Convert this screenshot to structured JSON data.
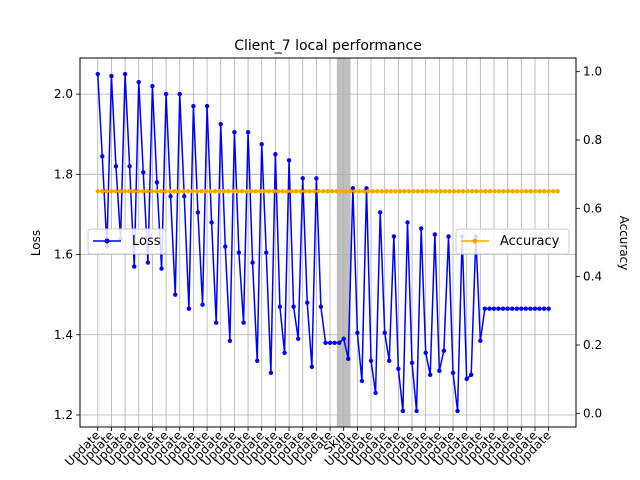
{
  "chart_data": {
    "type": "line",
    "title": "Client_7 local performance",
    "xlabel": "",
    "ylabel_left": "Loss",
    "ylabel_right": "Accuracy",
    "ylim_left": [
      1.17,
      2.09
    ],
    "ylim_right": [
      -0.04,
      1.04
    ],
    "yticks_left": [
      "1.2",
      "1.4",
      "1.6",
      "1.8",
      "2.0"
    ],
    "yticks_right": [
      "0.0",
      "0.2",
      "0.4",
      "0.6",
      "0.8",
      "1.0"
    ],
    "x_tick_labels": [
      "Update",
      "Update",
      "Update",
      "Update",
      "Update",
      "Update",
      "Update",
      "Update",
      "Update",
      "Update",
      "Update",
      "Update",
      "Update",
      "Update",
      "Update",
      "Update",
      "Update",
      "Update",
      "Skip",
      "Update",
      "Update",
      "Update",
      "Update",
      "Update",
      "Update",
      "Update",
      "Update",
      "Update",
      "Update",
      "Update",
      "Update",
      "Update",
      "Update",
      "Update"
    ],
    "skip_span": [
      17.5,
      18.5
    ],
    "grid": true,
    "legends": [
      {
        "label": "Loss",
        "placement": "center-left"
      },
      {
        "label": "Accuracy",
        "placement": "center-right"
      }
    ],
    "series": [
      {
        "name": "Loss",
        "axis": "left",
        "color": "#0000ff",
        "x": [
          0,
          0.33,
          0.67,
          1,
          1.33,
          1.67,
          2,
          2.33,
          2.67,
          3,
          3.33,
          3.67,
          4,
          4.33,
          4.67,
          5,
          5.33,
          5.67,
          6,
          6.33,
          6.67,
          7,
          7.33,
          7.67,
          8,
          8.33,
          8.67,
          9,
          9.33,
          9.67,
          10,
          10.33,
          10.67,
          11,
          11.33,
          11.67,
          12,
          12.33,
          12.67,
          13,
          13.33,
          13.67,
          14,
          14.33,
          14.67,
          15,
          15.33,
          15.67,
          16,
          16.33,
          16.67,
          17,
          17.33,
          17.67,
          18,
          18.33,
          18.67,
          19,
          19.33,
          19.67,
          20,
          20.33,
          20.67,
          21,
          21.33,
          21.67,
          22,
          22.33,
          22.67,
          23,
          23.33,
          23.67,
          24,
          24.33,
          24.67,
          25,
          25.33,
          25.67,
          26,
          26.33,
          26.67,
          27,
          27.33,
          27.67,
          28,
          28.33,
          28.67,
          29,
          29.33,
          29.67,
          30,
          30.33,
          30.67,
          31,
          31.33,
          31.67,
          32,
          32.33,
          32.67,
          33
        ],
        "y": [
          2.05,
          1.845,
          1.62,
          2.045,
          1.82,
          1.64,
          2.05,
          1.82,
          1.57,
          2.03,
          1.805,
          1.58,
          2.02,
          1.78,
          1.565,
          2.0,
          1.745,
          1.5,
          2.0,
          1.745,
          1.465,
          1.97,
          1.705,
          1.475,
          1.97,
          1.68,
          1.43,
          1.925,
          1.62,
          1.385,
          1.905,
          1.605,
          1.43,
          1.905,
          1.58,
          1.335,
          1.875,
          1.605,
          1.305,
          1.85,
          1.47,
          1.355,
          1.835,
          1.47,
          1.39,
          1.79,
          1.48,
          1.32,
          1.79,
          1.47,
          1.38,
          1.38,
          1.38,
          1.38,
          1.39,
          1.34,
          1.765,
          1.405,
          1.285,
          1.765,
          1.335,
          1.255,
          1.705,
          1.405,
          1.335,
          1.645,
          1.315,
          1.21,
          1.68,
          1.33,
          1.21,
          1.665,
          1.355,
          1.3,
          1.65,
          1.31,
          1.36,
          1.645,
          1.305,
          1.21,
          1.645,
          1.29,
          1.3,
          1.645,
          1.385,
          1.465,
          1.465,
          1.465,
          1.465,
          1.465,
          1.465,
          1.465,
          1.465,
          1.465,
          1.465,
          1.465,
          1.465,
          1.465,
          1.465,
          1.465
        ]
      },
      {
        "name": "Accuracy",
        "axis": "right",
        "color": "#ffa500",
        "x_range": [
          0,
          33.67
        ],
        "x_step": 0.33,
        "constant_value": 0.65
      }
    ]
  }
}
